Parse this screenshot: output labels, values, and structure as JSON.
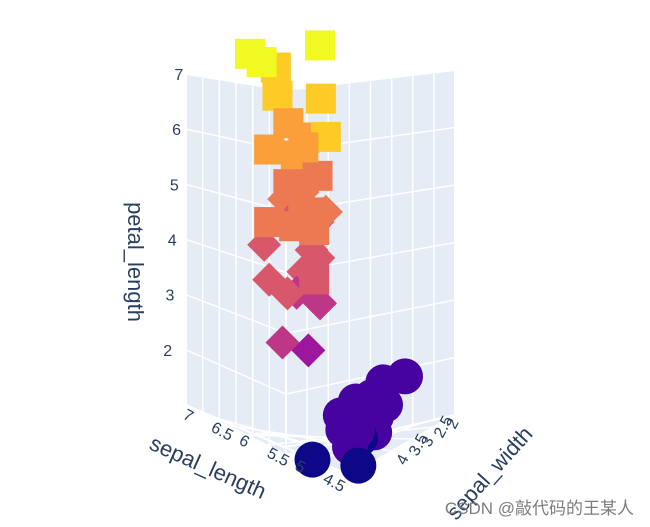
{
  "chart_data": {
    "type": "scatter3d",
    "axes": {
      "x": {
        "title": "sepal_length",
        "ticks": [
          "7",
          "6.5",
          "6",
          "5.5",
          "5",
          "4.5"
        ]
      },
      "y": {
        "title": "sepal_width",
        "ticks": [
          "2",
          "2.5",
          "3",
          "3.5",
          "4"
        ]
      },
      "z": {
        "title": "petal_length",
        "ticks": [
          "2",
          "3",
          "4",
          "5",
          "6",
          "7"
        ],
        "range": [
          1,
          7
        ]
      }
    },
    "grid": true,
    "colorscale": [
      "#0d0887",
      "#46039f",
      "#7201a8",
      "#9c179e",
      "#bd3786",
      "#d8576b",
      "#ed7953",
      "#fb9f3a",
      "#fdca26",
      "#f0f921"
    ],
    "series": [
      {
        "symbol": "circle",
        "points": [
          {
            "x": 5.1,
            "y": 3.5,
            "z": 1.4
          },
          {
            "x": 4.9,
            "y": 3.0,
            "z": 1.4
          },
          {
            "x": 4.7,
            "y": 3.2,
            "z": 1.3
          },
          {
            "x": 4.6,
            "y": 3.1,
            "z": 1.5
          },
          {
            "x": 5.0,
            "y": 3.6,
            "z": 1.4
          },
          {
            "x": 5.4,
            "y": 3.9,
            "z": 1.7
          },
          {
            "x": 4.6,
            "y": 3.4,
            "z": 1.4
          },
          {
            "x": 5.0,
            "y": 3.4,
            "z": 1.5
          },
          {
            "x": 4.4,
            "y": 2.9,
            "z": 1.4
          },
          {
            "x": 4.9,
            "y": 3.1,
            "z": 1.5
          },
          {
            "x": 5.4,
            "y": 3.7,
            "z": 1.5
          },
          {
            "x": 4.8,
            "y": 3.4,
            "z": 1.6
          },
          {
            "x": 4.3,
            "y": 3.0,
            "z": 1.1
          },
          {
            "x": 5.8,
            "y": 4.0,
            "z": 1.2
          },
          {
            "x": 5.7,
            "y": 4.4,
            "z": 1.5
          },
          {
            "x": 5.1,
            "y": 3.8,
            "z": 1.5
          },
          {
            "x": 5.1,
            "y": 3.3,
            "z": 1.7
          },
          {
            "x": 4.5,
            "y": 2.3,
            "z": 1.3
          },
          {
            "x": 5.2,
            "y": 3.5,
            "z": 1.5
          },
          {
            "x": 5.0,
            "y": 3.0,
            "z": 1.6
          }
        ]
      },
      {
        "symbol": "diamond",
        "points": [
          {
            "x": 7.0,
            "y": 3.2,
            "z": 4.7
          },
          {
            "x": 6.4,
            "y": 3.2,
            "z": 4.5
          },
          {
            "x": 6.9,
            "y": 3.1,
            "z": 4.9
          },
          {
            "x": 5.5,
            "y": 2.3,
            "z": 4.0
          },
          {
            "x": 6.5,
            "y": 2.8,
            "z": 4.6
          },
          {
            "x": 5.7,
            "y": 2.8,
            "z": 4.5
          },
          {
            "x": 6.3,
            "y": 3.3,
            "z": 4.7
          },
          {
            "x": 4.9,
            "y": 2.4,
            "z": 3.3
          },
          {
            "x": 6.6,
            "y": 2.9,
            "z": 4.6
          },
          {
            "x": 5.2,
            "y": 2.7,
            "z": 3.9
          },
          {
            "x": 5.0,
            "y": 2.0,
            "z": 3.5
          },
          {
            "x": 5.9,
            "y": 3.0,
            "z": 4.2
          },
          {
            "x": 6.0,
            "y": 2.2,
            "z": 4.0
          },
          {
            "x": 6.1,
            "y": 2.9,
            "z": 4.7
          },
          {
            "x": 5.6,
            "y": 2.9,
            "z": 3.6
          },
          {
            "x": 6.7,
            "y": 3.1,
            "z": 4.4
          },
          {
            "x": 5.8,
            "y": 2.7,
            "z": 4.1
          },
          {
            "x": 6.2,
            "y": 2.2,
            "z": 4.5
          },
          {
            "x": 5.6,
            "y": 2.5,
            "z": 3.9
          },
          {
            "x": 6.8,
            "y": 2.8,
            "z": 4.8
          }
        ]
      },
      {
        "symbol": "square",
        "points": [
          {
            "x": 6.3,
            "y": 3.3,
            "z": 6.0
          },
          {
            "x": 5.8,
            "y": 2.7,
            "z": 5.1
          },
          {
            "x": 7.1,
            "y": 3.0,
            "z": 5.9
          },
          {
            "x": 6.5,
            "y": 3.0,
            "z": 5.8
          },
          {
            "x": 7.6,
            "y": 3.0,
            "z": 6.6
          },
          {
            "x": 4.9,
            "y": 2.5,
            "z": 4.5
          },
          {
            "x": 7.3,
            "y": 2.9,
            "z": 6.3
          },
          {
            "x": 6.7,
            "y": 2.5,
            "z": 5.8
          },
          {
            "x": 7.2,
            "y": 3.6,
            "z": 6.1
          },
          {
            "x": 6.4,
            "y": 2.7,
            "z": 5.3
          },
          {
            "x": 6.8,
            "y": 3.0,
            "z": 5.5
          },
          {
            "x": 5.7,
            "y": 2.5,
            "z": 5.0
          },
          {
            "x": 5.8,
            "y": 2.8,
            "z": 5.1
          },
          {
            "x": 6.4,
            "y": 3.2,
            "z": 5.3
          },
          {
            "x": 7.7,
            "y": 3.8,
            "z": 6.7
          },
          {
            "x": 7.7,
            "y": 2.6,
            "z": 6.9
          },
          {
            "x": 6.0,
            "y": 2.2,
            "z": 5.0
          },
          {
            "x": 6.9,
            "y": 3.2,
            "z": 5.7
          },
          {
            "x": 5.6,
            "y": 2.8,
            "z": 4.9
          },
          {
            "x": 7.7,
            "y": 2.8,
            "z": 6.7
          }
        ]
      }
    ]
  },
  "watermark": "CSDN @敲代码的王某人"
}
